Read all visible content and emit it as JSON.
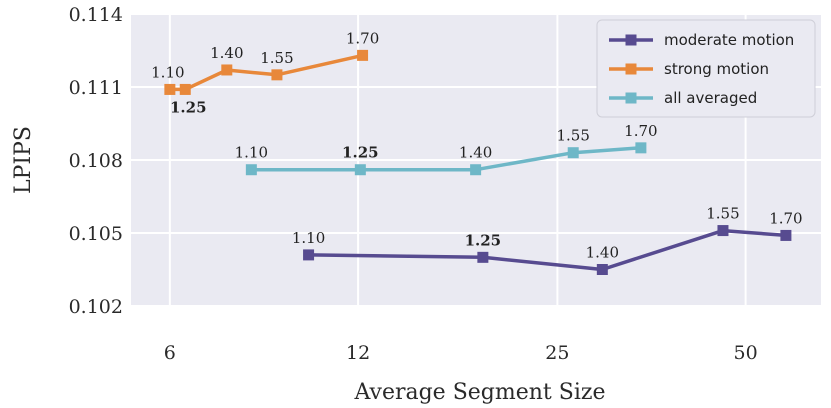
{
  "chart_data": {
    "type": "line",
    "title": "",
    "xlabel": "Average Segment Size",
    "ylabel": "LPIPS",
    "xscale": "log2",
    "xlim": [
      5.2,
      66
    ],
    "ylim": [
      0.102,
      0.114
    ],
    "xticks": [
      6,
      12,
      25,
      50
    ],
    "xtick_labels": [
      "6",
      "12",
      "25",
      "50"
    ],
    "yticks": [
      0.102,
      0.105,
      0.108,
      0.111,
      0.114
    ],
    "ytick_labels": [
      "0.102",
      "0.105",
      "0.108",
      "0.111",
      "0.114"
    ],
    "grid": true,
    "legend": "top-right",
    "series": [
      {
        "name": "moderate motion",
        "color": "#574b90",
        "marker": "square",
        "x": [
          10.0,
          19.0,
          29.5,
          46.0,
          58.0
        ],
        "y": [
          0.1041,
          0.104,
          0.1035,
          0.1051,
          0.1049
        ],
        "labels": [
          "1.10",
          "1.25",
          "1.40",
          "1.55",
          "1.70"
        ],
        "bold": [
          false,
          true,
          false,
          false,
          false
        ]
      },
      {
        "name": "strong motion",
        "color": "#e8883a",
        "marker": "square",
        "x": [
          6.0,
          6.35,
          7.4,
          8.9,
          12.2
        ],
        "y": [
          0.1109,
          0.1109,
          0.1117,
          0.1115,
          0.1123
        ],
        "labels": [
          "1.10",
          "1.25",
          "1.40",
          "1.55",
          "1.70"
        ],
        "bold": [
          false,
          true,
          false,
          false,
          false
        ]
      },
      {
        "name": "all averaged",
        "color": "#6eb7c7",
        "marker": "square",
        "x": [
          8.1,
          12.1,
          18.5,
          26.5,
          34.0
        ],
        "y": [
          0.1076,
          0.1076,
          0.1076,
          0.1083,
          0.1085
        ],
        "labels": [
          "1.10",
          "1.25",
          "1.40",
          "1.55",
          "1.70"
        ],
        "bold": [
          false,
          true,
          false,
          false,
          false
        ]
      }
    ]
  },
  "colors": {
    "plot_background": "#eaeaf2",
    "grid": "#ffffff"
  }
}
